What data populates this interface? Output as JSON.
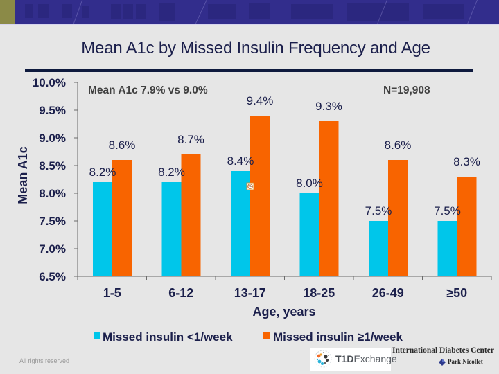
{
  "slide": {
    "title": "Mean A1c by Missed Insulin Frequency and Age",
    "footer_note": "All rights reserved",
    "logos": {
      "t1d_bold": "T1D",
      "t1d_light": "Exchange",
      "idc": "International Diabetes Center",
      "park_nicollet": "Park Nicollet"
    },
    "colors": {
      "banner": "#322d8c",
      "accent_olive": "#8b8a47",
      "series_1": "#00c6ea",
      "series_2": "#f86400",
      "text_navy": "#1b1f4b"
    }
  },
  "chart_data": {
    "type": "bar",
    "title": "Mean A1c by Missed Insulin Frequency and Age",
    "xlabel": "Age, years",
    "ylabel": "Mean A1c",
    "categories": [
      "1-5",
      "6-12",
      "13-17",
      "18-25",
      "26-49",
      "≥50"
    ],
    "series": [
      {
        "name": "Missed insulin <1/week",
        "color": "#00c6ea",
        "values": [
          8.2,
          8.2,
          8.4,
          8.0,
          7.5,
          7.5
        ],
        "labels": [
          "8.2%",
          "8.2%",
          "8.4%",
          "8.0%",
          "7.5%",
          "7.5%"
        ]
      },
      {
        "name": "Missed insulin ≥1/week",
        "color": "#f86400",
        "values": [
          8.6,
          8.7,
          9.4,
          9.3,
          8.6,
          8.3
        ],
        "labels": [
          "8.6%",
          "8.7%",
          "9.4%",
          "9.3%",
          "8.6%",
          "8.3%"
        ]
      }
    ],
    "ylim": [
      6.5,
      10.0
    ],
    "yticks": [
      10.0,
      9.5,
      9.0,
      8.5,
      8.0,
      7.5,
      7.0,
      6.5
    ],
    "ytick_labels": [
      "10.0%",
      "9.5%",
      "9.0%",
      "8.5%",
      "8.0%",
      "7.5%",
      "7.0%",
      "6.5%"
    ],
    "grid": false,
    "legend_position": "bottom",
    "annotations": [
      {
        "text": "Mean A1c 7.9% vs 9.0%",
        "position": "top-left"
      },
      {
        "text": "N=19,908",
        "position": "top-right"
      }
    ]
  }
}
